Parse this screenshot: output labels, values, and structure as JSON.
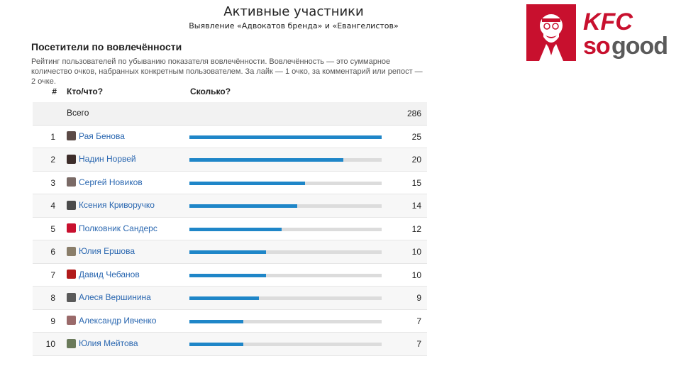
{
  "slide": {
    "title": "Активные участники",
    "subtitle": "Выявление «Адвокатов бренда» и «Евангелистов»"
  },
  "logo": {
    "brand": "KFC",
    "tagline": "so good",
    "brand_color": "#c8102e"
  },
  "panel": {
    "title": "Посетители по вовлечённости",
    "description": "Рейтинг пользователей по убыванию показателя вовлечённости. Вовлечённость — это суммарное количество очков, набранных конкретным пользователем. За лайк — 1 очко, за комментарий или репост — 2 очке."
  },
  "table": {
    "headers": {
      "num": "#",
      "who": "Кто/что?",
      "how": "Сколько?"
    },
    "total": {
      "label": "Всего",
      "value": "286"
    },
    "max": 25,
    "rows": [
      {
        "rank": "1",
        "name": "Рая Бенова",
        "value": "25",
        "avatar_color": "#5b4a46"
      },
      {
        "rank": "2",
        "name": "Надин Норвей",
        "value": "20",
        "avatar_color": "#3d2d2a"
      },
      {
        "rank": "3",
        "name": "Сергей Новиков",
        "value": "15",
        "avatar_color": "#7a6a66"
      },
      {
        "rank": "4",
        "name": "Ксения Криворучко",
        "value": "14",
        "avatar_color": "#4b4b4b"
      },
      {
        "rank": "5",
        "name": "Полковник Сандерс",
        "value": "12",
        "avatar_color": "#c8102e"
      },
      {
        "rank": "6",
        "name": "Юлия Ершова",
        "value": "10",
        "avatar_color": "#8a7e6a"
      },
      {
        "rank": "7",
        "name": "Давид Чебанов",
        "value": "10",
        "avatar_color": "#b11a1a"
      },
      {
        "rank": "8",
        "name": "Алеся Вершинина",
        "value": "9",
        "avatar_color": "#5a5a5a"
      },
      {
        "rank": "9",
        "name": "Александр Ивченко",
        "value": "7",
        "avatar_color": "#9a6a6a"
      },
      {
        "rank": "10",
        "name": "Юлия Мейтова",
        "value": "7",
        "avatar_color": "#6a7a5a"
      }
    ]
  }
}
